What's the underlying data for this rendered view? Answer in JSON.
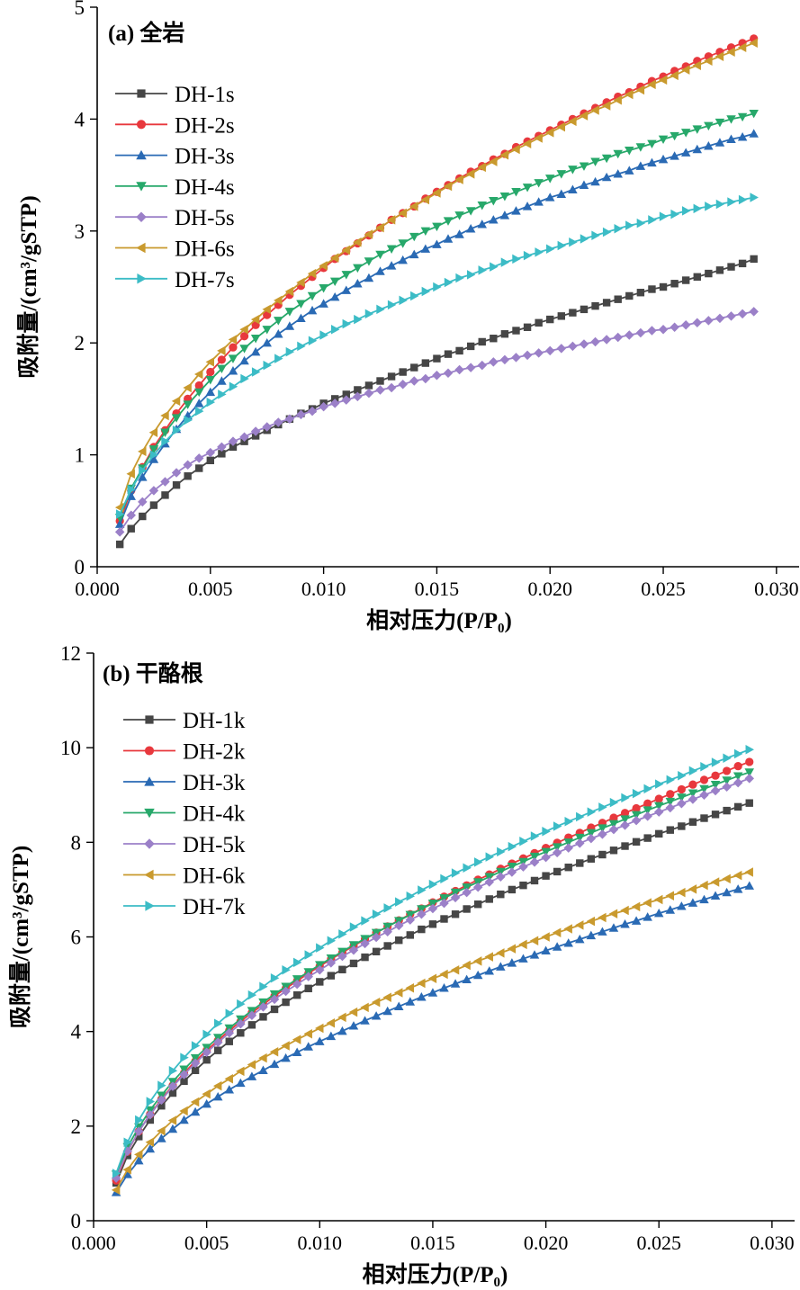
{
  "chart_data": [
    {
      "type": "line",
      "title": "(a) 全岩",
      "xlabel": "相对压力(P/P₀)",
      "ylabel": "吸附量/(cm³/gSTP)",
      "xlim": [
        0.0,
        0.031
      ],
      "ylim": [
        0,
        5
      ],
      "xticks": [
        "0.000",
        "0.005",
        "0.010",
        "0.015",
        "0.020",
        "0.025",
        "0.030"
      ],
      "yticks": [
        "0",
        "1",
        "2",
        "3",
        "4",
        "5"
      ],
      "grid": false,
      "legend": "top-left",
      "x": [
        0.001,
        0.0015,
        0.002,
        0.0025,
        0.003,
        0.0035,
        0.004,
        0.0045,
        0.005,
        0.0055,
        0.006,
        0.0065,
        0.007,
        0.0075,
        0.008,
        0.0085,
        0.009,
        0.0095,
        0.01,
        0.0105,
        0.011,
        0.0115,
        0.012,
        0.0125,
        0.013,
        0.0135,
        0.014,
        0.0145,
        0.015,
        0.0155,
        0.016,
        0.0165,
        0.017,
        0.0175,
        0.018,
        0.0185,
        0.019,
        0.0195,
        0.02,
        0.0205,
        0.021,
        0.0215,
        0.022,
        0.0225,
        0.023,
        0.0235,
        0.024,
        0.0245,
        0.025,
        0.0255,
        0.026,
        0.0265,
        0.027,
        0.0275,
        0.028,
        0.0285,
        0.029
      ],
      "series": [
        {
          "name": "DH-1s",
          "color": "#464646",
          "marker": "square",
          "values": [
            0.2,
            0.34,
            0.45,
            0.55,
            0.64,
            0.73,
            0.81,
            0.88,
            0.95,
            1.01,
            1.07,
            1.12,
            1.17,
            1.22,
            1.27,
            1.32,
            1.37,
            1.41,
            1.46,
            1.5,
            1.54,
            1.58,
            1.62,
            1.66,
            1.7,
            1.74,
            1.78,
            1.82,
            1.86,
            1.9,
            1.93,
            1.97,
            2.01,
            2.04,
            2.08,
            2.11,
            2.14,
            2.18,
            2.21,
            2.24,
            2.27,
            2.3,
            2.33,
            2.36,
            2.39,
            2.42,
            2.45,
            2.48,
            2.5,
            2.53,
            2.56,
            2.59,
            2.62,
            2.65,
            2.68,
            2.71,
            2.75
          ]
        },
        {
          "name": "DH-2s",
          "color": "#e8383d",
          "marker": "circle",
          "values": [
            0.41,
            0.68,
            0.89,
            1.07,
            1.22,
            1.37,
            1.5,
            1.62,
            1.74,
            1.85,
            1.96,
            2.06,
            2.16,
            2.25,
            2.34,
            2.43,
            2.51,
            2.59,
            2.67,
            2.75,
            2.82,
            2.89,
            2.96,
            3.03,
            3.1,
            3.16,
            3.22,
            3.29,
            3.35,
            3.41,
            3.47,
            3.53,
            3.58,
            3.64,
            3.69,
            3.75,
            3.8,
            3.85,
            3.9,
            3.95,
            4.0,
            4.05,
            4.1,
            4.15,
            4.2,
            4.24,
            4.29,
            4.34,
            4.38,
            4.43,
            4.47,
            4.52,
            4.56,
            4.6,
            4.64,
            4.68,
            4.72
          ]
        },
        {
          "name": "DH-3s",
          "color": "#2a6ab4",
          "marker": "triangle-up",
          "values": [
            0.38,
            0.63,
            0.8,
            0.96,
            1.1,
            1.23,
            1.35,
            1.46,
            1.56,
            1.66,
            1.75,
            1.84,
            1.92,
            2.0,
            2.08,
            2.15,
            2.22,
            2.29,
            2.35,
            2.41,
            2.47,
            2.53,
            2.58,
            2.64,
            2.69,
            2.74,
            2.79,
            2.84,
            2.88,
            2.93,
            2.97,
            3.02,
            3.06,
            3.1,
            3.14,
            3.18,
            3.22,
            3.26,
            3.3,
            3.33,
            3.37,
            3.41,
            3.44,
            3.48,
            3.51,
            3.54,
            3.58,
            3.61,
            3.64,
            3.67,
            3.7,
            3.73,
            3.76,
            3.79,
            3.82,
            3.84,
            3.87
          ]
        },
        {
          "name": "DH-4s",
          "color": "#27a86a",
          "marker": "triangle-down",
          "values": [
            0.44,
            0.7,
            0.88,
            1.05,
            1.2,
            1.33,
            1.45,
            1.56,
            1.67,
            1.77,
            1.86,
            1.95,
            2.04,
            2.12,
            2.2,
            2.28,
            2.35,
            2.42,
            2.49,
            2.55,
            2.61,
            2.67,
            2.73,
            2.79,
            2.84,
            2.89,
            2.95,
            3.0,
            3.04,
            3.09,
            3.14,
            3.18,
            3.23,
            3.27,
            3.31,
            3.35,
            3.39,
            3.43,
            3.47,
            3.51,
            3.55,
            3.58,
            3.62,
            3.65,
            3.69,
            3.72,
            3.75,
            3.78,
            3.82,
            3.85,
            3.88,
            3.91,
            3.94,
            3.97,
            4.0,
            4.02,
            4.05
          ]
        },
        {
          "name": "DH-5s",
          "color": "#9b80c8",
          "marker": "diamond",
          "values": [
            0.31,
            0.46,
            0.58,
            0.68,
            0.76,
            0.84,
            0.91,
            0.97,
            1.02,
            1.07,
            1.12,
            1.16,
            1.21,
            1.25,
            1.29,
            1.32,
            1.36,
            1.39,
            1.43,
            1.46,
            1.49,
            1.52,
            1.55,
            1.58,
            1.6,
            1.63,
            1.66,
            1.68,
            1.71,
            1.73,
            1.76,
            1.78,
            1.8,
            1.83,
            1.85,
            1.87,
            1.89,
            1.91,
            1.93,
            1.95,
            1.97,
            1.99,
            2.01,
            2.03,
            2.05,
            2.07,
            2.09,
            2.11,
            2.12,
            2.14,
            2.16,
            2.18,
            2.2,
            2.22,
            2.24,
            2.26,
            2.28
          ]
        },
        {
          "name": "DH-6s",
          "color": "#c99a2e",
          "marker": "triangle-left",
          "values": [
            0.53,
            0.83,
            1.03,
            1.2,
            1.35,
            1.48,
            1.6,
            1.72,
            1.83,
            1.93,
            2.03,
            2.12,
            2.21,
            2.3,
            2.38,
            2.46,
            2.54,
            2.62,
            2.69,
            2.76,
            2.83,
            2.9,
            2.97,
            3.03,
            3.1,
            3.16,
            3.22,
            3.28,
            3.34,
            3.4,
            3.46,
            3.51,
            3.57,
            3.62,
            3.68,
            3.73,
            3.78,
            3.83,
            3.88,
            3.93,
            3.98,
            4.03,
            4.08,
            4.12,
            4.17,
            4.22,
            4.26,
            4.31,
            4.35,
            4.39,
            4.44,
            4.48,
            4.52,
            4.56,
            4.6,
            4.64,
            4.68
          ]
        },
        {
          "name": "DH-7s",
          "color": "#3cbcc6",
          "marker": "triangle-right",
          "values": [
            0.47,
            0.69,
            0.86,
            1.0,
            1.12,
            1.22,
            1.31,
            1.39,
            1.47,
            1.54,
            1.61,
            1.68,
            1.74,
            1.8,
            1.86,
            1.92,
            1.97,
            2.02,
            2.07,
            2.12,
            2.17,
            2.21,
            2.26,
            2.3,
            2.34,
            2.38,
            2.42,
            2.46,
            2.5,
            2.54,
            2.58,
            2.61,
            2.65,
            2.68,
            2.72,
            2.75,
            2.78,
            2.81,
            2.84,
            2.87,
            2.9,
            2.93,
            2.96,
            2.99,
            3.02,
            3.05,
            3.07,
            3.1,
            3.13,
            3.15,
            3.18,
            3.2,
            3.22,
            3.24,
            3.26,
            3.28,
            3.3
          ]
        }
      ]
    },
    {
      "type": "line",
      "title": "(b) 干酪根",
      "xlabel": "相对压力(P/P₀)",
      "ylabel": "吸附量/(cm³/gSTP)",
      "xlim": [
        0.0,
        0.031
      ],
      "ylim": [
        0,
        12
      ],
      "xticks": [
        "0.000",
        "0.005",
        "0.010",
        "0.015",
        "0.020",
        "0.025",
        "0.030"
      ],
      "yticks": [
        "0",
        "2",
        "4",
        "6",
        "8",
        "10",
        "12"
      ],
      "grid": false,
      "legend": "top-left",
      "x": [
        0.001,
        0.0015,
        0.002,
        0.0025,
        0.003,
        0.0035,
        0.004,
        0.0045,
        0.005,
        0.0055,
        0.006,
        0.0065,
        0.007,
        0.0075,
        0.008,
        0.0085,
        0.009,
        0.0095,
        0.01,
        0.0105,
        0.011,
        0.0115,
        0.012,
        0.0125,
        0.013,
        0.0135,
        0.014,
        0.0145,
        0.015,
        0.0155,
        0.016,
        0.0165,
        0.017,
        0.0175,
        0.018,
        0.0185,
        0.019,
        0.0195,
        0.02,
        0.0205,
        0.021,
        0.0215,
        0.022,
        0.0225,
        0.023,
        0.0235,
        0.024,
        0.0245,
        0.025,
        0.0255,
        0.026,
        0.0265,
        0.027,
        0.0275,
        0.028,
        0.0285,
        0.029
      ],
      "series": [
        {
          "name": "DH-1k",
          "color": "#464646",
          "marker": "square",
          "values": [
            0.8,
            1.38,
            1.78,
            2.13,
            2.43,
            2.7,
            2.95,
            3.18,
            3.4,
            3.6,
            3.79,
            3.97,
            4.14,
            4.31,
            4.47,
            4.62,
            4.77,
            4.91,
            5.05,
            5.18,
            5.31,
            5.44,
            5.57,
            5.69,
            5.81,
            5.93,
            6.04,
            6.16,
            6.27,
            6.38,
            6.48,
            6.59,
            6.69,
            6.8,
            6.9,
            7.0,
            7.09,
            7.19,
            7.29,
            7.38,
            7.47,
            7.56,
            7.65,
            7.74,
            7.83,
            7.92,
            8.01,
            8.09,
            8.18,
            8.26,
            8.34,
            8.43,
            8.51,
            8.59,
            8.67,
            8.75,
            8.83
          ]
        },
        {
          "name": "DH-2k",
          "color": "#e8383d",
          "marker": "circle",
          "values": [
            0.85,
            1.46,
            1.89,
            2.25,
            2.57,
            2.86,
            3.12,
            3.37,
            3.6,
            3.81,
            4.02,
            4.21,
            4.4,
            4.57,
            4.75,
            4.91,
            5.07,
            5.23,
            5.38,
            5.53,
            5.67,
            5.81,
            5.95,
            6.09,
            6.22,
            6.35,
            6.48,
            6.6,
            6.73,
            6.85,
            6.97,
            7.09,
            7.21,
            7.32,
            7.44,
            7.55,
            7.66,
            7.77,
            7.88,
            7.99,
            8.1,
            8.2,
            8.31,
            8.41,
            8.52,
            8.62,
            8.72,
            8.82,
            8.92,
            9.02,
            9.12,
            9.22,
            9.32,
            9.41,
            9.51,
            9.61,
            9.7
          ]
        },
        {
          "name": "DH-3k",
          "color": "#2a6ab4",
          "marker": "triangle-up",
          "values": [
            0.6,
            0.98,
            1.27,
            1.52,
            1.74,
            1.94,
            2.13,
            2.3,
            2.47,
            2.62,
            2.77,
            2.91,
            3.05,
            3.18,
            3.31,
            3.44,
            3.56,
            3.68,
            3.79,
            3.9,
            4.01,
            4.12,
            4.23,
            4.33,
            4.43,
            4.53,
            4.63,
            4.73,
            4.82,
            4.92,
            5.01,
            5.1,
            5.19,
            5.28,
            5.37,
            5.45,
            5.54,
            5.62,
            5.71,
            5.79,
            5.87,
            5.95,
            6.03,
            6.11,
            6.19,
            6.27,
            6.34,
            6.42,
            6.5,
            6.57,
            6.65,
            6.72,
            6.79,
            6.87,
            6.94,
            7.01,
            7.08
          ]
        },
        {
          "name": "DH-4k",
          "color": "#27a86a",
          "marker": "triangle-down",
          "values": [
            0.98,
            1.56,
            1.98,
            2.34,
            2.65,
            2.94,
            3.2,
            3.44,
            3.66,
            3.87,
            4.07,
            4.26,
            4.44,
            4.62,
            4.79,
            4.95,
            5.11,
            5.26,
            5.41,
            5.55,
            5.69,
            5.83,
            5.96,
            6.09,
            6.22,
            6.34,
            6.47,
            6.59,
            6.71,
            6.82,
            6.94,
            7.05,
            7.16,
            7.27,
            7.38,
            7.49,
            7.59,
            7.7,
            7.8,
            7.9,
            8.0,
            8.1,
            8.2,
            8.3,
            8.39,
            8.49,
            8.58,
            8.68,
            8.77,
            8.86,
            8.95,
            9.04,
            9.13,
            9.22,
            9.31,
            9.4,
            9.48
          ]
        },
        {
          "name": "DH-5k",
          "color": "#9b80c8",
          "marker": "diamond",
          "values": [
            0.9,
            1.47,
            1.89,
            2.24,
            2.55,
            2.84,
            3.09,
            3.33,
            3.56,
            3.77,
            3.97,
            4.16,
            4.34,
            4.52,
            4.68,
            4.85,
            5.0,
            5.16,
            5.3,
            5.45,
            5.59,
            5.72,
            5.86,
            5.99,
            6.11,
            6.24,
            6.36,
            6.48,
            6.6,
            6.71,
            6.83,
            6.94,
            7.05,
            7.16,
            7.27,
            7.37,
            7.48,
            7.58,
            7.68,
            7.78,
            7.88,
            7.98,
            8.08,
            8.17,
            8.27,
            8.36,
            8.46,
            8.55,
            8.64,
            8.73,
            8.82,
            8.91,
            9.0,
            9.09,
            9.17,
            9.26,
            9.35
          ]
        },
        {
          "name": "DH-6k",
          "color": "#c99a2e",
          "marker": "triangle-left",
          "values": [
            0.65,
            1.08,
            1.4,
            1.66,
            1.9,
            2.12,
            2.32,
            2.51,
            2.68,
            2.85,
            3.0,
            3.16,
            3.3,
            3.44,
            3.57,
            3.7,
            3.83,
            3.95,
            4.07,
            4.18,
            4.3,
            4.41,
            4.51,
            4.62,
            4.72,
            4.82,
            4.92,
            5.02,
            5.12,
            5.21,
            5.3,
            5.4,
            5.49,
            5.58,
            5.66,
            5.75,
            5.84,
            5.92,
            6.0,
            6.09,
            6.17,
            6.25,
            6.33,
            6.41,
            6.49,
            6.56,
            6.64,
            6.72,
            6.79,
            6.87,
            6.94,
            7.01,
            7.09,
            7.16,
            7.23,
            7.3,
            7.37
          ]
        },
        {
          "name": "DH-7k",
          "color": "#3cbcc6",
          "marker": "triangle-right",
          "values": [
            1.0,
            1.66,
            2.13,
            2.52,
            2.86,
            3.17,
            3.45,
            3.7,
            3.94,
            4.17,
            4.38,
            4.58,
            4.77,
            4.95,
            5.13,
            5.3,
            5.46,
            5.62,
            5.77,
            5.92,
            6.06,
            6.21,
            6.34,
            6.48,
            6.61,
            6.74,
            6.86,
            6.99,
            7.11,
            7.23,
            7.35,
            7.46,
            7.58,
            7.69,
            7.8,
            7.91,
            8.02,
            8.13,
            8.23,
            8.34,
            8.44,
            8.54,
            8.64,
            8.74,
            8.84,
            8.94,
            9.03,
            9.13,
            9.23,
            9.32,
            9.41,
            9.51,
            9.6,
            9.69,
            9.78,
            9.87,
            9.96
          ]
        }
      ]
    }
  ]
}
